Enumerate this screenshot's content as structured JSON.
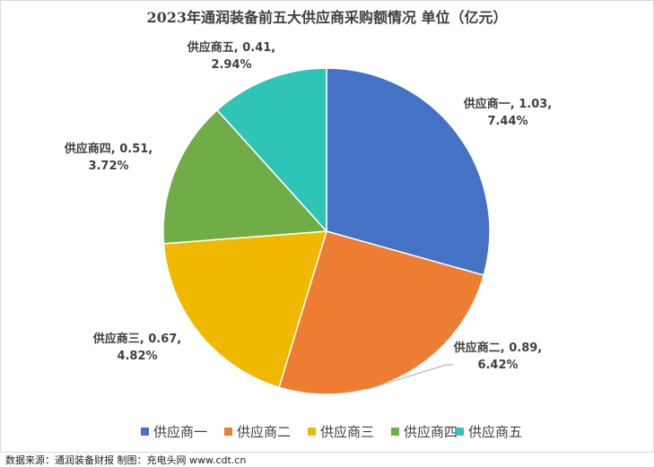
{
  "chart_data": {
    "type": "pie",
    "title": "2023年通润装备前五大供应商采购额情况 单位（亿元）",
    "categories": [
      "供应商一",
      "供应商二",
      "供应商三",
      "供应商四",
      "供应商五"
    ],
    "values": [
      1.03,
      0.89,
      0.67,
      0.51,
      0.41
    ],
    "percent_labels": [
      "7.44%",
      "6.42%",
      "4.82%",
      "3.72%",
      "2.94%"
    ],
    "data_labels": [
      [
        "供应商一, 1.03,",
        "7.44%"
      ],
      [
        "供应商二, 0.89,",
        "6.42%"
      ],
      [
        "供应商三, 0.67,",
        "4.82%"
      ],
      [
        "供应商四, 0.51,",
        "3.72%"
      ],
      [
        "供应商五, 0.41,",
        "2.94%"
      ]
    ],
    "colors": [
      "#4472c4",
      "#ed7d31",
      "#f0b800",
      "#70ad47",
      "#2ec4b6"
    ],
    "legend_position": "bottom"
  },
  "footer": {
    "source": "数据来源：通润装备财报  制图：充电头网 www.cdt.cn"
  }
}
